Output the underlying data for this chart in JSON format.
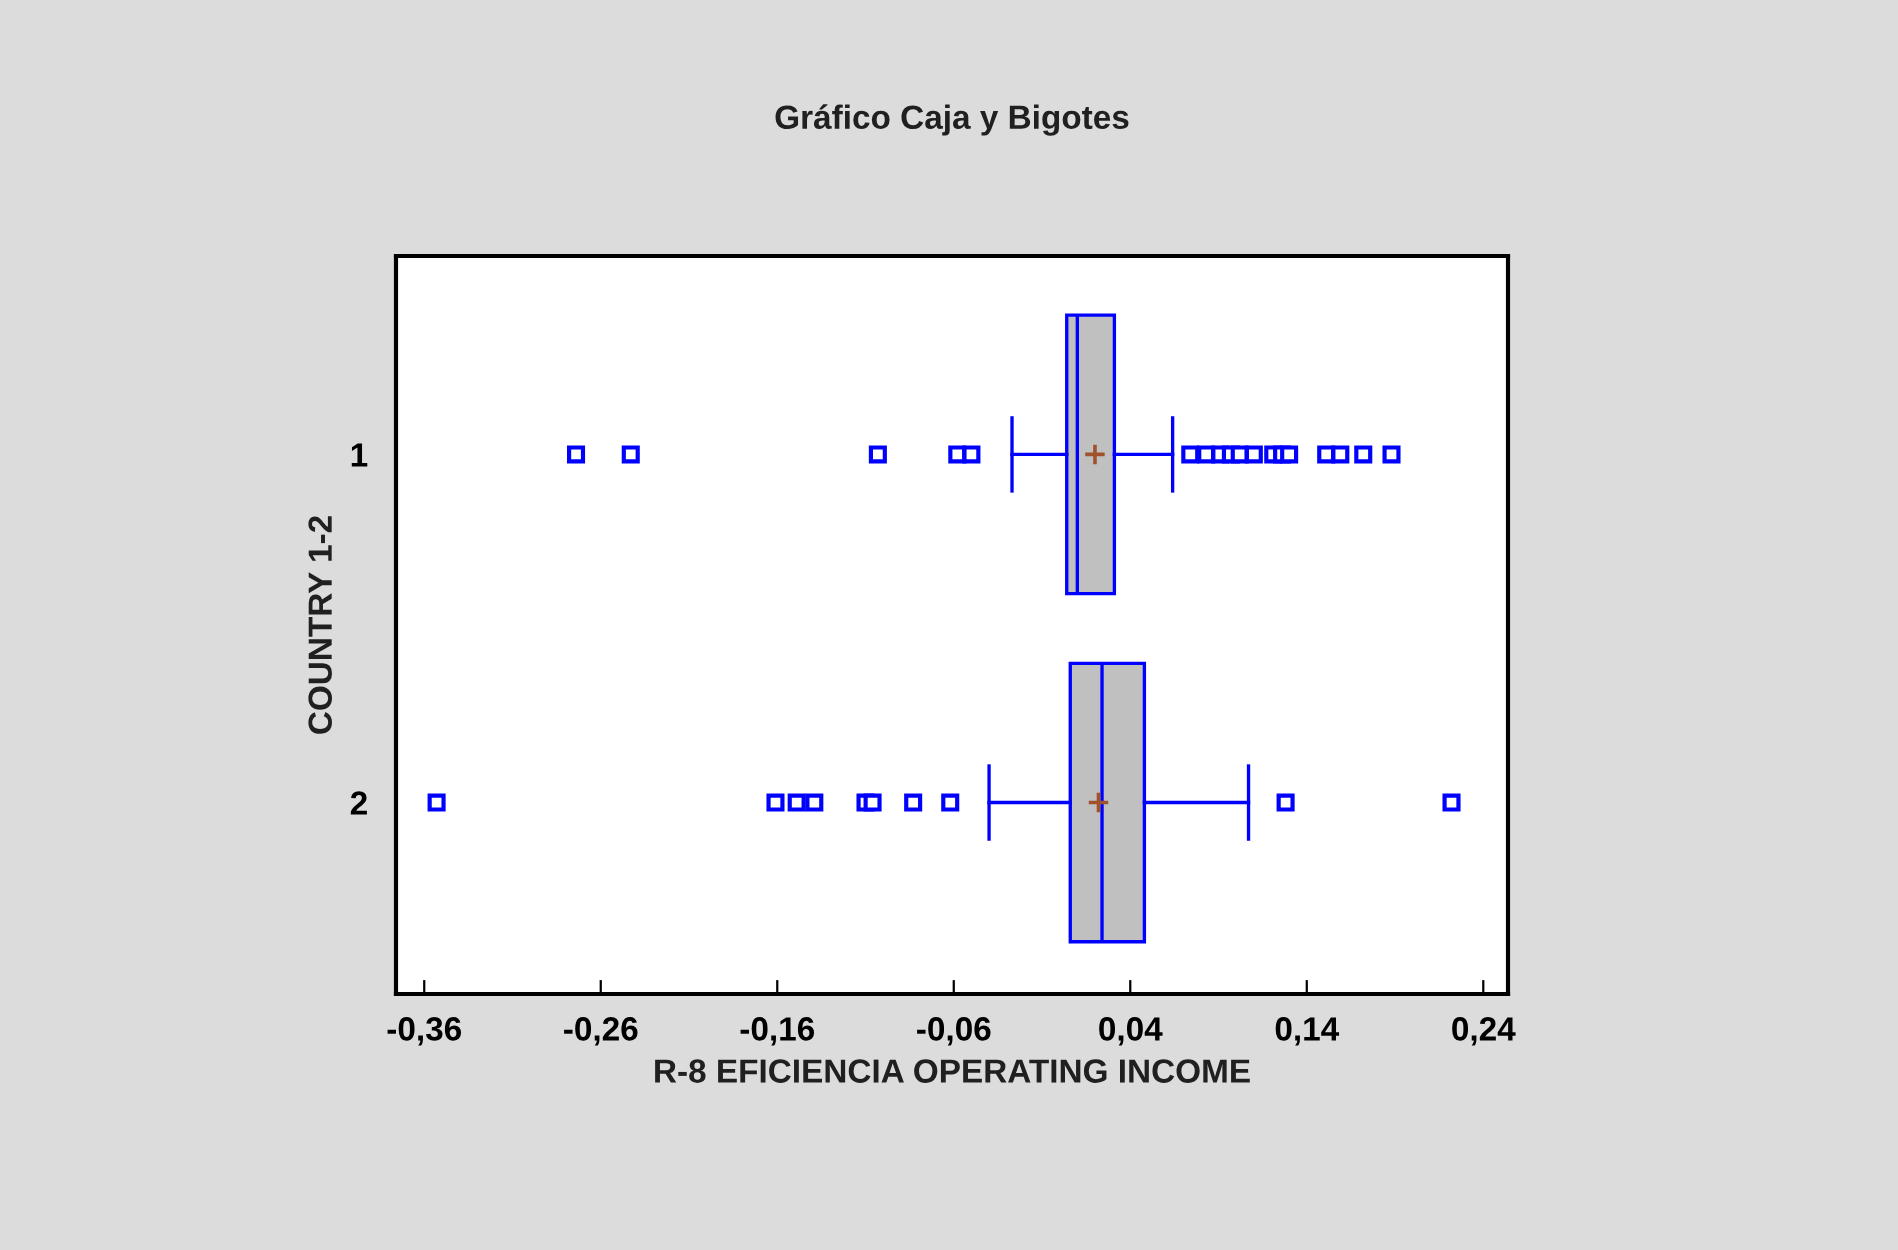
{
  "chart_data": {
    "type": "box",
    "orientation": "horizontal",
    "title": "Gráfico Caja y Bigotes",
    "xlabel": "R-8 EFICIENCIA OPERATING INCOME",
    "ylabel": "COUNTRY 1-2",
    "categories": [
      "1",
      "2"
    ],
    "color": "#c0c0c0",
    "grid": false,
    "legend": false,
    "xlim": [
      -0.376,
      0.254
    ],
    "xticks": [
      {
        "value": -0.36,
        "label": "-0,36"
      },
      {
        "value": -0.26,
        "label": "-0,26"
      },
      {
        "value": -0.16,
        "label": "-0,16"
      },
      {
        "value": -0.06,
        "label": "-0,06"
      },
      {
        "value": 0.04,
        "label": "0,04"
      },
      {
        "value": 0.14,
        "label": "0,14"
      },
      {
        "value": 0.24,
        "label": "0,24"
      }
    ],
    "boxes": [
      {
        "low": -0.027,
        "q1": 0.004,
        "median": 0.01,
        "q3": 0.031,
        "high": 0.064,
        "mean": 0.02,
        "outliers": [
          -0.274,
          -0.243,
          -0.103,
          -0.058,
          -0.05,
          0.074,
          0.083,
          0.091,
          0.097,
          0.102,
          0.11,
          0.121,
          0.126,
          0.13,
          0.151,
          0.159,
          0.172,
          0.188
        ]
      },
      {
        "low": -0.04,
        "q1": 0.006,
        "median": 0.024,
        "q3": 0.048,
        "high": 0.107,
        "mean": 0.022,
        "outliers": [
          -0.353,
          -0.161,
          -0.149,
          -0.139,
          -0.11,
          -0.106,
          -0.083,
          -0.062,
          0.128,
          0.222
        ]
      }
    ]
  }
}
